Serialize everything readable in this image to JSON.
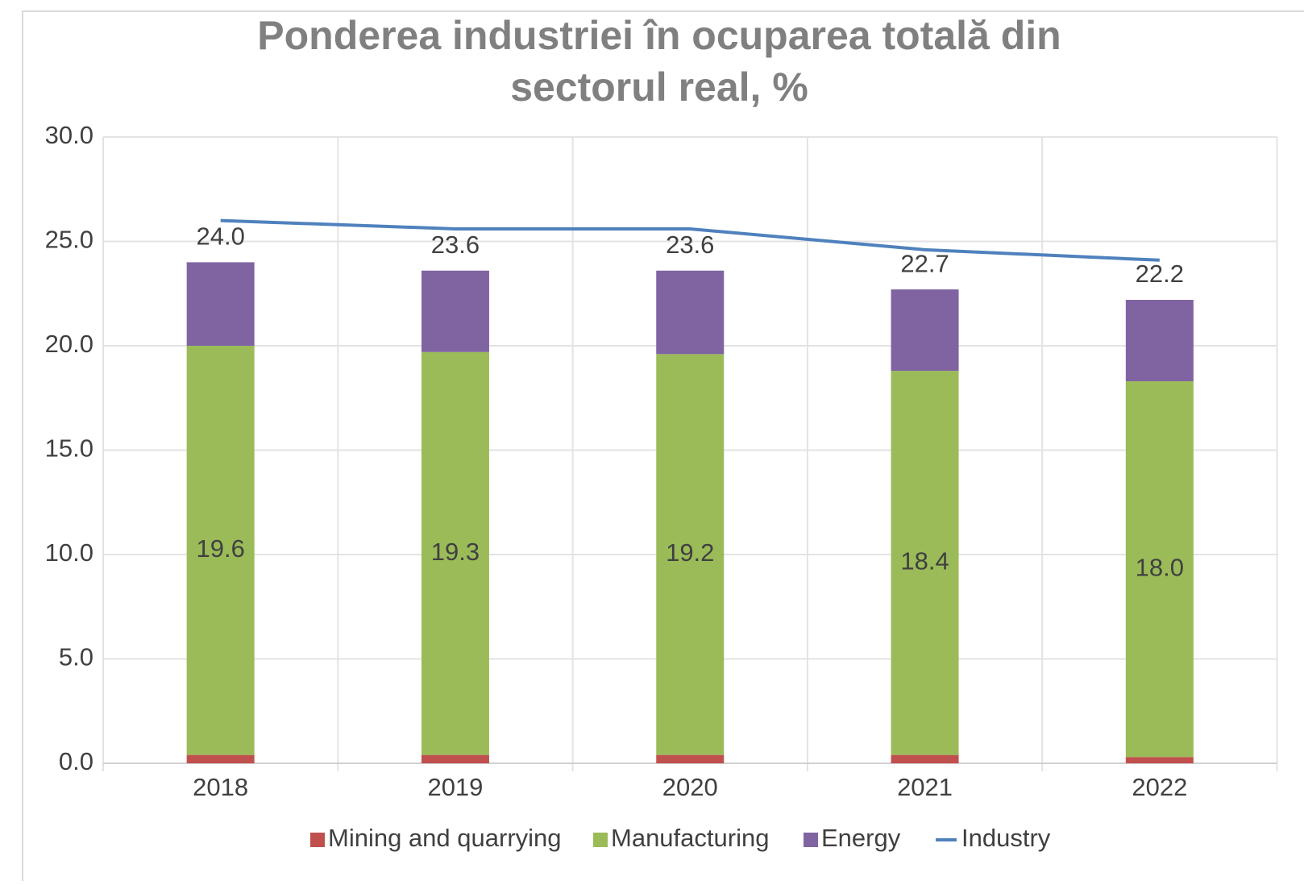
{
  "chart_data": {
    "type": "stacked_bar_line",
    "title": [
      "Ponderea industriei în ocuparea totală din",
      "sectorul real, %"
    ],
    "categories": [
      "2018",
      "2019",
      "2020",
      "2021",
      "2022"
    ],
    "series": [
      {
        "name": "Mining and quarrying",
        "color": "#c0504d",
        "type": "bar",
        "values": [
          0.4,
          0.4,
          0.4,
          0.4,
          0.3
        ]
      },
      {
        "name": "Manufacturing",
        "color": "#9bbb59",
        "type": "bar",
        "values": [
          19.6,
          19.3,
          19.2,
          18.4,
          18.0
        ],
        "value_labels": [
          "19.6",
          "19.3",
          "19.2",
          "18.4",
          "18.0"
        ]
      },
      {
        "name": "Energy",
        "color": "#8064a2",
        "type": "bar",
        "values": [
          4.0,
          3.9,
          4.0,
          3.9,
          3.9
        ]
      },
      {
        "name": "Industry",
        "color": "#4f81bd",
        "type": "line",
        "values": [
          26.0,
          25.6,
          25.6,
          24.6,
          24.1
        ]
      }
    ],
    "totals": [
      24.0,
      23.6,
      23.6,
      22.7,
      22.2
    ],
    "total_labels": [
      "24.0",
      "23.6",
      "23.6",
      "22.7",
      "22.2"
    ],
    "ylim": [
      0,
      30
    ],
    "yticks": [
      {
        "value": 0,
        "label": "0.0"
      },
      {
        "value": 5,
        "label": "5.0"
      },
      {
        "value": 10,
        "label": "10.0"
      },
      {
        "value": 15,
        "label": "15.0"
      },
      {
        "value": 20,
        "label": "20.0"
      },
      {
        "value": 25,
        "label": "25.0"
      },
      {
        "value": 30,
        "label": "30.0"
      }
    ],
    "grid": true,
    "legend": "bottom"
  }
}
